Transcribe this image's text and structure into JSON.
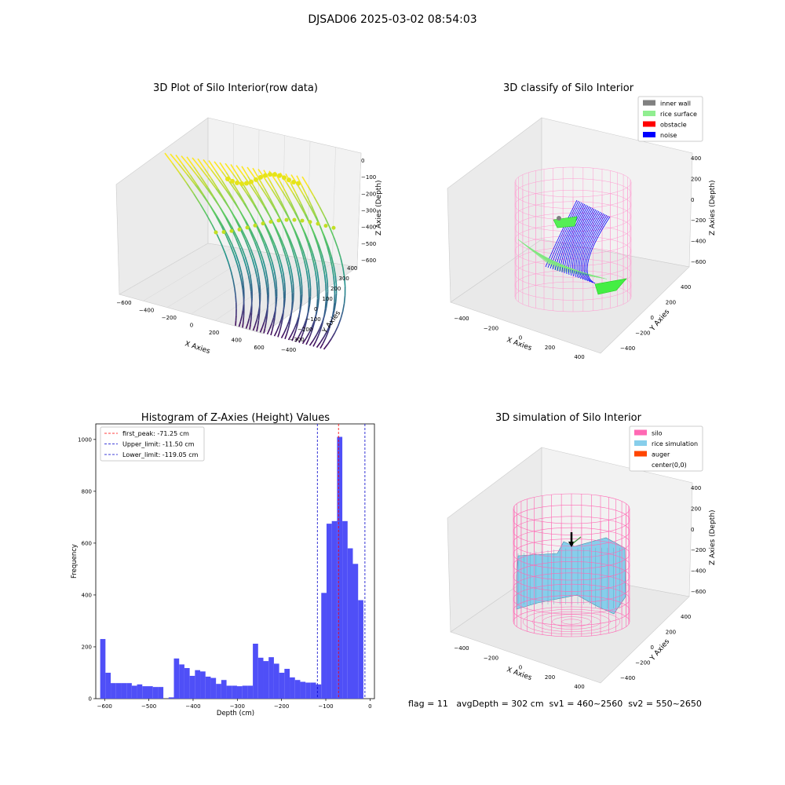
{
  "figure_title": "DJSAD06 2025-03-02 08:54:03",
  "status": "flag = 11   avgDepth = 302 cm  sv1 = 460~2560  sv2 = 550~2650",
  "colors": {
    "hist_bar": "#4f4ff7",
    "peak_line": "#ff0000",
    "limit_line": "#0000cc",
    "inner_wall": "#808080",
    "rice_surface": "#90ee90",
    "obstacle": "#ff0000",
    "noise": "#0000ff",
    "silo": "#ff69b4",
    "rice_simulation": "#87ceeb",
    "auger": "#ff4500",
    "classify_wire": "#ff9ad0"
  },
  "chart_data": [
    {
      "type": "scatter3d",
      "title": "3D Plot of Silo Interior(row data)",
      "xlabel": "X Axies",
      "ylabel": "Y Axies",
      "zlabel": "Z Axies (Depth)",
      "x_ticks": [
        "−600",
        "−400",
        "−200",
        "0",
        "200",
        "400",
        "600"
      ],
      "y_ticks": [
        "−400",
        "−300",
        "−200",
        "−100",
        "0",
        "100",
        "200",
        "300",
        "400"
      ],
      "z_ticks": [
        "0",
        "−100",
        "−200",
        "−300",
        "−400",
        "−500",
        "−600"
      ],
      "xlim": [
        -600,
        600
      ],
      "ylim": [
        -400,
        400
      ],
      "zlim": [
        -650,
        0
      ],
      "colormap": "viridis"
    },
    {
      "type": "scatter3d",
      "title": "3D classify of Silo Interior",
      "xlabel": "X Axies",
      "ylabel": "Y Axies",
      "zlabel": "Z Axies (Depth)",
      "x_ticks": [
        "−400",
        "−200",
        "0",
        "200",
        "400"
      ],
      "y_ticks": [
        "−400",
        "−200",
        "0",
        "200",
        "400"
      ],
      "z_ticks": [
        "400",
        "200",
        "0",
        "−200",
        "−400",
        "−600"
      ],
      "legend": [
        "inner wall",
        "rice surface",
        "obstacle",
        "noise"
      ],
      "legend_position": "top-right"
    },
    {
      "type": "bar",
      "title": "Histogram of Z-Axies (Height) Values",
      "xlabel": "Depth (cm)",
      "ylabel": "Frequency",
      "xlim": [
        -620,
        10
      ],
      "ylim": [
        0,
        1060
      ],
      "x_ticks": [
        -600,
        -500,
        -400,
        -300,
        -200,
        -100,
        0
      ],
      "y_ticks": [
        0,
        200,
        400,
        600,
        800,
        1000
      ],
      "bin_start": -610,
      "bin_width": 11.9,
      "values": [
        230,
        100,
        60,
        60,
        60,
        60,
        50,
        55,
        48,
        48,
        45,
        45,
        0,
        5,
        155,
        132,
        118,
        88,
        110,
        105,
        85,
        80,
        57,
        72,
        50,
        50,
        48,
        50,
        50,
        212,
        158,
        145,
        160,
        135,
        100,
        115,
        82,
        72,
        65,
        62,
        62,
        55,
        408,
        675,
        685,
        1010,
        685,
        580,
        520,
        380
      ],
      "lines": [
        {
          "label": "first_peak: -71.25 cm",
          "x": -71.25,
          "color": "#ff0000"
        },
        {
          "label": "Upper_limit: -11.50 cm",
          "x": -11.5,
          "color": "#0000cc"
        },
        {
          "label": "Lower_limit: -119.05 cm",
          "x": -119.05,
          "color": "#0000cc"
        }
      ],
      "legend_position": "top-left"
    },
    {
      "type": "surface3d",
      "title": "3D simulation of Silo Interior",
      "xlabel": "X Axies",
      "ylabel": "Y Axies",
      "zlabel": "Z Axies (Depth)",
      "x_ticks": [
        "−400",
        "−200",
        "0",
        "200",
        "400"
      ],
      "y_ticks": [
        "−400",
        "−200",
        "0",
        "200",
        "400"
      ],
      "z_ticks": [
        "400",
        "200",
        "0",
        "−200",
        "−400",
        "−600"
      ],
      "legend": [
        "silo",
        "rice simulation",
        "auger",
        "center(0,0)"
      ],
      "legend_position": "top-right"
    }
  ]
}
